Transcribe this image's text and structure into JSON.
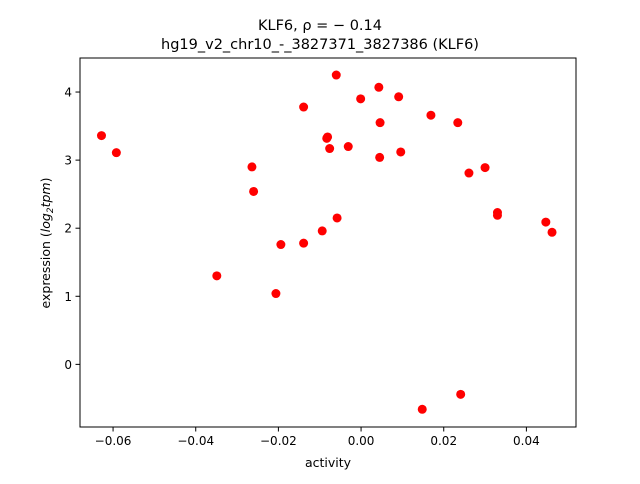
{
  "chart_data": {
    "type": "scatter",
    "title_line1": "KLF6, ρ = − 0.14",
    "title_line2": "hg19_v2_chr10_-_3827371_3827386 (KLF6)",
    "xlabel": "activity",
    "ylabel_prefix": "expression (",
    "ylabel_math": "log",
    "ylabel_sub": "2",
    "ylabel_math2": "tpm",
    "ylabel_suffix": ")",
    "xlim": [
      -0.068,
      0.052
    ],
    "ylim": [
      -0.92,
      4.5
    ],
    "xticks": [
      {
        "value": -0.06,
        "label": "−0.06"
      },
      {
        "value": -0.04,
        "label": "−0.04"
      },
      {
        "value": -0.02,
        "label": "−0.02"
      },
      {
        "value": 0.0,
        "label": "0.00"
      },
      {
        "value": 0.02,
        "label": "0.02"
      },
      {
        "value": 0.04,
        "label": "0.04"
      }
    ],
    "yticks": [
      {
        "value": 0,
        "label": "0"
      },
      {
        "value": 1,
        "label": "1"
      },
      {
        "value": 2,
        "label": "2"
      },
      {
        "value": 3,
        "label": "3"
      },
      {
        "value": 4,
        "label": "4"
      }
    ],
    "marker_color": "#ff0000",
    "points": [
      {
        "x": -0.0628,
        "y": 3.36
      },
      {
        "x": -0.0592,
        "y": 3.11
      },
      {
        "x": -0.0349,
        "y": 1.3
      },
      {
        "x": -0.0264,
        "y": 2.9
      },
      {
        "x": -0.026,
        "y": 2.54
      },
      {
        "x": -0.0206,
        "y": 1.04
      },
      {
        "x": -0.0194,
        "y": 1.76
      },
      {
        "x": -0.0139,
        "y": 3.78
      },
      {
        "x": -0.0139,
        "y": 1.78
      },
      {
        "x": -0.0094,
        "y": 1.96
      },
      {
        "x": -0.0083,
        "y": 3.32
      },
      {
        "x": -0.0081,
        "y": 3.34
      },
      {
        "x": -0.0076,
        "y": 3.17
      },
      {
        "x": -0.006,
        "y": 4.25
      },
      {
        "x": -0.0058,
        "y": 2.15
      },
      {
        "x": -0.0031,
        "y": 3.2
      },
      {
        "x": -0.0001,
        "y": 3.9
      },
      {
        "x": 0.0043,
        "y": 4.07
      },
      {
        "x": 0.0046,
        "y": 3.55
      },
      {
        "x": 0.0045,
        "y": 3.04
      },
      {
        "x": 0.0091,
        "y": 3.93
      },
      {
        "x": 0.0096,
        "y": 3.12
      },
      {
        "x": 0.0148,
        "y": -0.66
      },
      {
        "x": 0.0169,
        "y": 3.66
      },
      {
        "x": 0.0234,
        "y": 3.55
      },
      {
        "x": 0.0241,
        "y": -0.44
      },
      {
        "x": 0.0261,
        "y": 2.81
      },
      {
        "x": 0.03,
        "y": 2.89
      },
      {
        "x": 0.033,
        "y": 2.23
      },
      {
        "x": 0.033,
        "y": 2.19
      },
      {
        "x": 0.0447,
        "y": 2.09
      },
      {
        "x": 0.0462,
        "y": 1.94
      }
    ]
  }
}
